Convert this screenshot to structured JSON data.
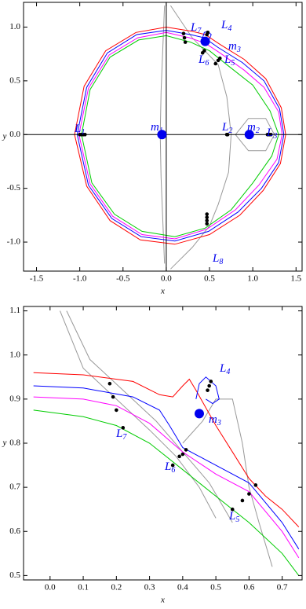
{
  "chart_data": [
    {
      "type": "line",
      "xlabel": "x",
      "ylabel": "y",
      "xlim": [
        -1.65,
        1.57
      ],
      "ylim": [
        -1.27,
        1.23
      ],
      "xticks": [
        {
          "value": -1.5,
          "label": "-1.5"
        },
        {
          "value": -1.0,
          "label": "-1.0"
        },
        {
          "value": -0.5,
          "label": "-0.5"
        },
        {
          "value": 0,
          "label": "0.0"
        },
        {
          "value": 0.5,
          "label": "0.5"
        },
        {
          "value": 1.0,
          "label": "1.0"
        },
        {
          "value": 1.5,
          "label": "1.5"
        }
      ],
      "yticks": [
        {
          "value": -1.0,
          "label": "-1.0"
        },
        {
          "value": -0.5,
          "label": "-0.5"
        },
        {
          "value": 0,
          "label": "0.0"
        },
        {
          "value": 0.5,
          "label": "0.5"
        },
        {
          "value": 1.0,
          "label": "1.0"
        }
      ],
      "axes_lines": true,
      "series": [
        {
          "color": "#999999",
          "x": [
            -0.02,
            -0.04,
            -0.06,
            -0.07,
            -0.06,
            -0.04,
            -0.02
          ],
          "y": [
            1.2,
            0.8,
            0.4,
            0,
            -0.4,
            -0.8,
            -1.2
          ]
        },
        {
          "color": "#999999",
          "x": [
            0.05,
            0.3,
            0.6,
            0.7,
            0.75,
            0.72,
            0.6,
            0.5,
            0.3,
            0.05
          ],
          "y": [
            1.2,
            0.9,
            0.65,
            0.35,
            0,
            -0.35,
            -0.65,
            -0.85,
            -1.05,
            -1.25
          ]
        },
        {
          "color": "#999999",
          "x": [
            0.8,
            0.95,
            1.15,
            1.25,
            1.15,
            0.95,
            0.8
          ],
          "y": [
            0,
            0.15,
            0.15,
            0,
            -0.15,
            -0.15,
            0
          ]
        },
        {
          "color": "#ff0000",
          "x": [
            -1.06,
            -0.95,
            -0.7,
            -0.35,
            0,
            0.3,
            0.45,
            0.62,
            0.9,
            1.15,
            1.33,
            1.38,
            1.32,
            1.12,
            0.85,
            0.5,
            0.1,
            -0.3,
            -0.65,
            -0.92,
            -1.06
          ],
          "y": [
            0,
            0.45,
            0.78,
            0.95,
            1.0,
            0.96,
            0.93,
            0.84,
            0.7,
            0.52,
            0.25,
            0,
            -0.27,
            -0.52,
            -0.75,
            -0.93,
            -1.02,
            -0.98,
            -0.8,
            -0.48,
            0
          ]
        },
        {
          "color": "#0000ff",
          "x": [
            -1.03,
            -0.92,
            -0.68,
            -0.34,
            0,
            0.28,
            0.44,
            0.6,
            0.88,
            1.13,
            1.31,
            1.36,
            1.3,
            1.1,
            0.83,
            0.49,
            0.1,
            -0.29,
            -0.63,
            -0.9,
            -1.03
          ],
          "y": [
            0,
            0.44,
            0.76,
            0.93,
            0.97,
            0.93,
            0.9,
            0.81,
            0.67,
            0.5,
            0.24,
            0,
            -0.26,
            -0.5,
            -0.72,
            -0.9,
            -0.99,
            -0.95,
            -0.78,
            -0.47,
            0
          ]
        },
        {
          "color": "#ff00ff",
          "x": [
            -1.01,
            -0.9,
            -0.66,
            -0.33,
            0,
            0.27,
            0.45,
            0.62,
            0.9,
            1.13,
            1.3,
            1.34,
            1.28,
            1.07,
            0.8,
            0.47,
            0.1,
            -0.28,
            -0.62,
            -0.88,
            -1.01
          ],
          "y": [
            0,
            0.43,
            0.74,
            0.9,
            0.95,
            0.9,
            0.85,
            0.76,
            0.6,
            0.44,
            0.21,
            0,
            -0.23,
            -0.47,
            -0.7,
            -0.88,
            -0.97,
            -0.93,
            -0.76,
            -0.46,
            0
          ]
        },
        {
          "color": "#00cc00",
          "x": [
            -0.98,
            -0.88,
            -0.65,
            -0.32,
            0,
            0.28,
            0.5,
            0.7,
            1.0,
            1.2,
            1.3,
            1.22,
            1.0,
            0.75,
            0.45,
            0.1,
            -0.28,
            -0.6,
            -0.86,
            -0.98
          ],
          "y": [
            0,
            0.42,
            0.72,
            0.88,
            0.92,
            0.86,
            0.78,
            0.65,
            0.46,
            0.22,
            0,
            -0.2,
            -0.45,
            -0.7,
            -0.87,
            -0.95,
            -0.9,
            -0.74,
            -0.45,
            0
          ]
        },
        {
          "color": "#0000ff",
          "x": [
            0.42,
            0.44,
            0.48,
            0.52,
            0.5,
            0.46,
            0.42
          ],
          "y": [
            0.9,
            0.95,
            0.96,
            0.93,
            0.89,
            0.88,
            0.9
          ]
        }
      ],
      "points": [
        {
          "label": "L",
          "sub": "1",
          "x": [
            -1.0,
            -0.98,
            -0.96,
            -0.94
          ],
          "y": [
            0,
            0,
            0,
            0
          ]
        },
        {
          "label": "L",
          "sub": "2",
          "x": [
            0.7,
            0.71
          ],
          "y": [
            0,
            0
          ]
        },
        {
          "label": "L",
          "sub": "3",
          "x": [
            1.17,
            1.19,
            1.21
          ],
          "y": [
            0,
            0,
            0
          ]
        },
        {
          "label": "L",
          "sub": "4",
          "x": [
            0.47,
            0.48
          ],
          "y": [
            0.93,
            0.95
          ]
        },
        {
          "label": "L",
          "sub": "5",
          "x": [
            0.57,
            0.6,
            0.62
          ],
          "y": [
            0.66,
            0.69,
            0.71
          ]
        },
        {
          "label": "L",
          "sub": "6",
          "x": [
            0.42,
            0.44
          ],
          "y": [
            0.76,
            0.78
          ]
        },
        {
          "label": "L",
          "sub": "7",
          "x": [
            0.2,
            0.21,
            0.22
          ],
          "y": [
            0.94,
            0.9,
            0.86
          ]
        },
        {
          "label": "L",
          "sub": "8",
          "x": [
            0.47,
            0.47,
            0.47,
            0.47
          ],
          "y": [
            -0.74,
            -0.77,
            -0.8,
            -0.83
          ]
        }
      ],
      "bodies": [
        {
          "label": "m",
          "sub": "1",
          "x": -0.05,
          "y": 0
        },
        {
          "label": "m",
          "sub": "2",
          "x": 0.96,
          "y": 0
        },
        {
          "label": "m",
          "sub": "3",
          "x": 0.45,
          "y": 0.867
        }
      ]
    },
    {
      "type": "line",
      "xlabel": "x",
      "ylabel": "y",
      "xlim": [
        -0.08,
        0.76
      ],
      "ylim": [
        0.49,
        1.11
      ],
      "xticks": [
        {
          "value": 0,
          "label": "0.0"
        },
        {
          "value": 0.1,
          "label": "0.1"
        },
        {
          "value": 0.2,
          "label": "0.2"
        },
        {
          "value": 0.3,
          "label": "0.3"
        },
        {
          "value": 0.4,
          "label": "0.4"
        },
        {
          "value": 0.5,
          "label": "0.5"
        },
        {
          "value": 0.6,
          "label": "0.6"
        },
        {
          "value": 0.7,
          "label": "0.7"
        }
      ],
      "yticks": [
        {
          "value": 0.5,
          "label": "0.5"
        },
        {
          "value": 0.6,
          "label": "0.6"
        },
        {
          "value": 0.7,
          "label": "0.7"
        },
        {
          "value": 0.8,
          "label": "0.8"
        },
        {
          "value": 0.9,
          "label": "0.9"
        },
        {
          "value": 1.0,
          "label": "1.0"
        },
        {
          "value": 1.1,
          "label": "1.1"
        }
      ],
      "axes_lines": false,
      "series": [
        {
          "color": "#999999",
          "x": [
            0.03,
            0.1,
            0.2,
            0.3,
            0.38,
            0.45,
            0.5
          ],
          "y": [
            1.1,
            0.97,
            0.9,
            0.83,
            0.77,
            0.7,
            0.63
          ]
        },
        {
          "color": "#999999",
          "x": [
            0.05,
            0.12,
            0.22,
            0.32,
            0.4,
            0.48,
            0.55
          ],
          "y": [
            1.1,
            0.99,
            0.92,
            0.85,
            0.78,
            0.71,
            0.62
          ]
        },
        {
          "color": "#999999",
          "x": [
            0.4,
            0.46,
            0.5,
            0.55,
            0.58,
            0.6,
            0.63,
            0.67
          ],
          "y": [
            0.8,
            0.85,
            0.9,
            0.9,
            0.8,
            0.7,
            0.62,
            0.52
          ]
        },
        {
          "color": "#ff0000",
          "x": [
            -0.05,
            0.1,
            0.25,
            0.33,
            0.37,
            0.4,
            0.42,
            0.44,
            0.5,
            0.55,
            0.6,
            0.65,
            0.7,
            0.75
          ],
          "y": [
            0.96,
            0.955,
            0.94,
            0.91,
            0.905,
            0.93,
            0.945,
            0.92,
            0.84,
            0.78,
            0.72,
            0.68,
            0.65,
            0.61
          ]
        },
        {
          "color": "#0000ff",
          "x": [
            -0.05,
            0.1,
            0.25,
            0.33,
            0.36,
            0.4,
            0.5,
            0.6,
            0.7,
            0.75
          ],
          "y": [
            0.93,
            0.925,
            0.905,
            0.875,
            0.84,
            0.79,
            0.75,
            0.71,
            0.62,
            0.56
          ]
        },
        {
          "color": "#ff00ff",
          "x": [
            -0.05,
            0.1,
            0.2,
            0.3,
            0.4,
            0.5,
            0.6,
            0.7,
            0.75
          ],
          "y": [
            0.905,
            0.9,
            0.885,
            0.845,
            0.78,
            0.73,
            0.69,
            0.6,
            0.54
          ]
        },
        {
          "color": "#00cc00",
          "x": [
            -0.05,
            0.1,
            0.2,
            0.3,
            0.4,
            0.5,
            0.6,
            0.7,
            0.75
          ],
          "y": [
            0.875,
            0.86,
            0.84,
            0.8,
            0.74,
            0.68,
            0.62,
            0.55,
            0.5
          ]
        },
        {
          "color": "#0000ff",
          "x": [
            0.44,
            0.45,
            0.47,
            0.5,
            0.51,
            0.49,
            0.47
          ],
          "y": [
            0.9,
            0.935,
            0.95,
            0.93,
            0.9,
            0.89,
            0.9
          ]
        }
      ],
      "points": [
        {
          "label": "L",
          "sub": "4",
          "x": [
            0.475,
            0.48,
            0.485
          ],
          "y": [
            0.92,
            0.93,
            0.94
          ]
        },
        {
          "label": "L",
          "sub": "5",
          "x": [
            0.55,
            0.58,
            0.6,
            0.62
          ],
          "y": [
            0.65,
            0.67,
            0.685,
            0.705
          ]
        },
        {
          "label": "L",
          "sub": "6",
          "x": [
            0.37,
            0.39,
            0.4,
            0.41
          ],
          "y": [
            0.75,
            0.77,
            0.775,
            0.785
          ]
        },
        {
          "label": "L",
          "sub": "7",
          "x": [
            0.18,
            0.19,
            0.2,
            0.22
          ],
          "y": [
            0.935,
            0.905,
            0.875,
            0.835
          ]
        }
      ],
      "bodies": [
        {
          "label": "m",
          "sub": "3",
          "x": 0.45,
          "y": 0.867
        }
      ]
    }
  ]
}
